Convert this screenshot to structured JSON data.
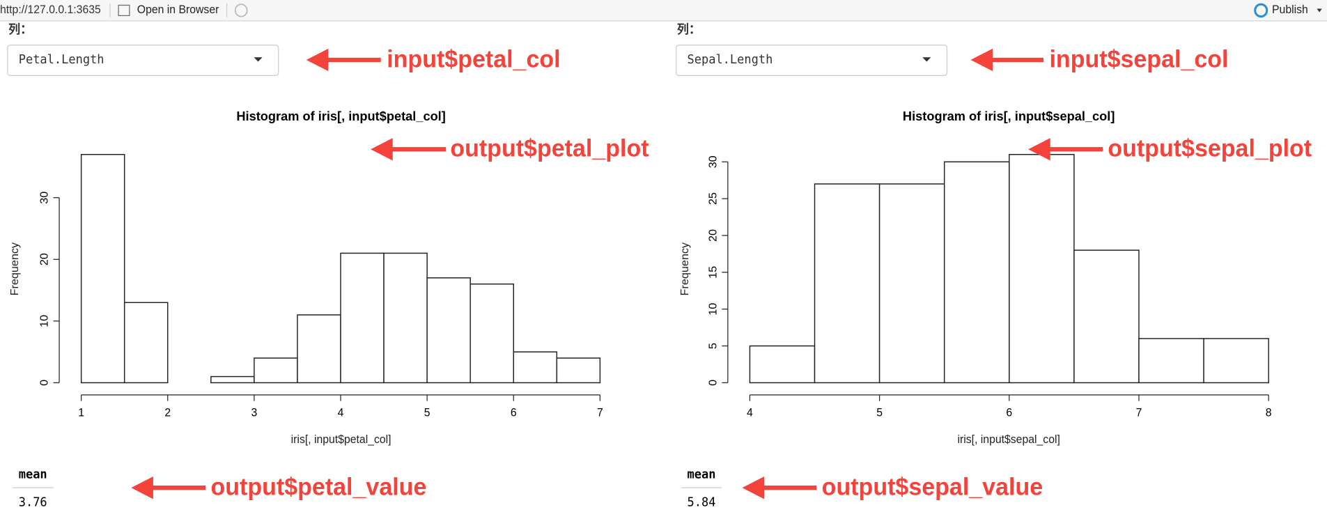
{
  "toolbar": {
    "url": "http://127.0.0.1:3635",
    "open": "Open in Browser",
    "publish": "Publish"
  },
  "panels": [
    {
      "label": "列：",
      "select": "Petal.Length",
      "select_annotation": "input$petal_col",
      "chart": {
        "type": "histogram",
        "title": "Histogram of iris[, input$petal_col]",
        "xlabel": "iris[, input$petal_col]",
        "ylabel": "Frequency",
        "bins": [
          1,
          1.5,
          2,
          2.5,
          3,
          3.5,
          4,
          4.5,
          5,
          5.5,
          6,
          6.5,
          7
        ],
        "values": [
          37,
          13,
          0,
          1,
          4,
          11,
          21,
          21,
          17,
          16,
          5,
          4
        ],
        "xlim": [
          1,
          7
        ],
        "ylim": [
          0,
          37
        ],
        "xticks": [
          1,
          2,
          3,
          4,
          5,
          6,
          7
        ],
        "yticks": [
          0,
          10,
          20,
          30
        ]
      },
      "plot_annotation": "output$petal_plot",
      "stat": {
        "header": "mean",
        "value": 3.76
      },
      "value_annotation": "output$petal_value"
    },
    {
      "label": "列：",
      "select": "Sepal.Length",
      "select_annotation": "input$sepal_col",
      "chart": {
        "type": "histogram",
        "title": "Histogram of iris[, input$sepal_col]",
        "xlabel": "iris[, input$sepal_col]",
        "ylabel": "Frequency",
        "bins": [
          4,
          4.5,
          5,
          5.5,
          6,
          6.5,
          7,
          7.5,
          8
        ],
        "values": [
          5,
          27,
          27,
          30,
          31,
          18,
          6,
          6
        ],
        "xlim": [
          4,
          8
        ],
        "ylim": [
          0,
          31
        ],
        "xticks": [
          4,
          5,
          6,
          7,
          8
        ],
        "yticks": [
          0,
          5,
          10,
          15,
          20,
          25,
          30
        ]
      },
      "plot_annotation": "output$sepal_plot",
      "stat": {
        "header": "mean",
        "value": 5.84
      },
      "value_annotation": "output$sepal_value"
    }
  ]
}
